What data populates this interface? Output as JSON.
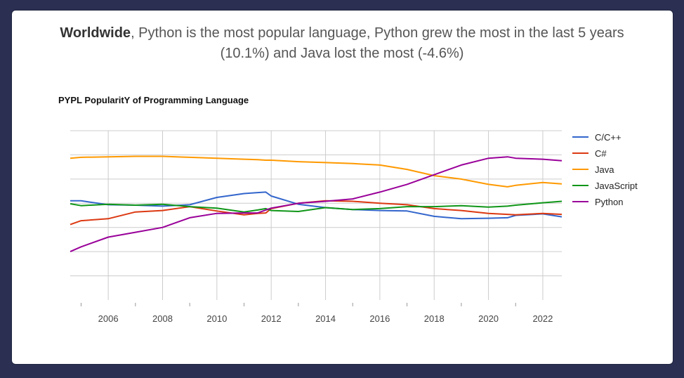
{
  "header": {
    "bold": "Worldwide",
    "rest": ", Python is the most popular language, Python grew the most in the last 5 years (10.1%) and Java lost the most (-4.6%)"
  },
  "chart_data": {
    "type": "line",
    "title": "PYPL PopularitY of Programming Language",
    "xlabel": "",
    "ylabel": "",
    "grid": true,
    "legend_position": "right",
    "xlim": [
      2004.6,
      2022.7
    ],
    "ylim": [
      0,
      35
    ],
    "x_ticks": [
      "2006",
      "2008",
      "2010",
      "2012",
      "2014",
      "2016",
      "2018",
      "2020",
      "2022"
    ],
    "x": [
      2004.6,
      2005,
      2006,
      2007,
      2008,
      2009,
      2010,
      2011,
      2011.5,
      2011.8,
      2012,
      2013,
      2014,
      2015,
      2016,
      2017,
      2018,
      2019,
      2020,
      2020.7,
      2021,
      2022,
      2022.7
    ],
    "series": [
      {
        "name": "C/C++",
        "color": "#3366cc",
        "values": [
          20.5,
          20.5,
          19.7,
          19.6,
          19.4,
          19.7,
          21.2,
          22.0,
          22.2,
          22.3,
          21.5,
          19.8,
          19.1,
          18.7,
          18.5,
          18.4,
          17.3,
          16.8,
          16.9,
          17.0,
          17.5,
          17.8,
          17.2
        ]
      },
      {
        "name": "C#",
        "color": "#dc3912",
        "values": [
          15.6,
          16.4,
          16.8,
          18.2,
          18.5,
          19.3,
          18.4,
          17.6,
          17.9,
          18.0,
          18.9,
          20.0,
          20.5,
          20.4,
          20.0,
          19.7,
          18.9,
          18.5,
          17.9,
          17.7,
          17.6,
          17.9,
          17.7
        ]
      },
      {
        "name": "Java",
        "color": "#ff9900",
        "values": [
          29.3,
          29.5,
          29.6,
          29.7,
          29.7,
          29.5,
          29.3,
          29.1,
          29.0,
          28.9,
          28.9,
          28.6,
          28.4,
          28.2,
          27.9,
          27.0,
          25.7,
          25.0,
          23.9,
          23.4,
          23.7,
          24.3,
          24.0
        ]
      },
      {
        "name": "JavaScript",
        "color": "#109618",
        "values": [
          19.9,
          19.5,
          19.8,
          19.6,
          19.8,
          19.3,
          19.0,
          18.2,
          18.6,
          18.9,
          18.5,
          18.3,
          19.1,
          18.7,
          18.9,
          19.3,
          19.3,
          19.5,
          19.2,
          19.4,
          19.6,
          20.1,
          20.4
        ]
      },
      {
        "name": "Python",
        "color": "#990099",
        "values": [
          10.0,
          11.0,
          13.0,
          14.0,
          15.0,
          17.0,
          17.9,
          18.0,
          18.0,
          18.6,
          19.0,
          20.0,
          20.4,
          20.9,
          22.3,
          23.9,
          25.9,
          27.9,
          29.3,
          29.6,
          29.3,
          29.1,
          28.8
        ]
      }
    ]
  }
}
